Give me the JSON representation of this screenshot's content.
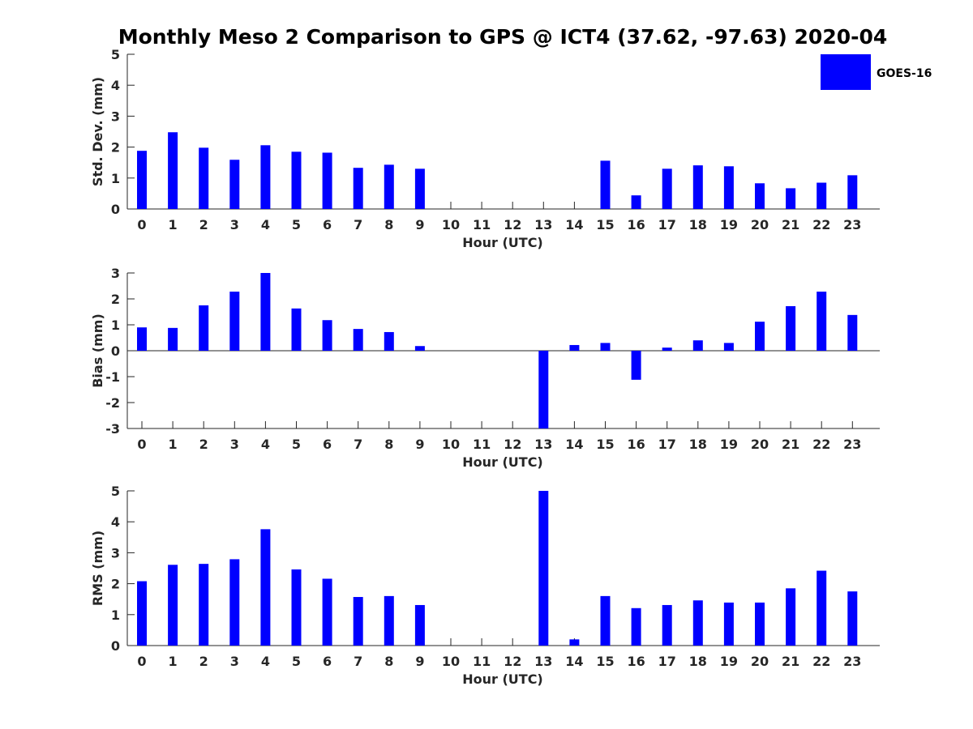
{
  "title": "Monthly Meso 2 Comparison to GPS @ ICT4 (37.62, -97.63) 2020-04",
  "legend": {
    "label": "GOES-16",
    "color": "#0000ff",
    "placement": "top-right"
  },
  "chart_data": [
    {
      "type": "bar",
      "xlabel": "Hour (UTC)",
      "ylabel": "Std. Dev. (mm)",
      "ylim": [
        0,
        5
      ],
      "yticks": [
        0,
        1,
        2,
        3,
        4,
        5
      ],
      "categories": [
        "0",
        "1",
        "2",
        "3",
        "4",
        "5",
        "6",
        "7",
        "8",
        "9",
        "10",
        "11",
        "12",
        "13",
        "14",
        "15",
        "16",
        "17",
        "18",
        "19",
        "20",
        "21",
        "22",
        "23"
      ],
      "series": [
        {
          "name": "GOES-16",
          "values": [
            1.88,
            2.48,
            1.98,
            1.59,
            2.06,
            1.85,
            1.82,
            1.33,
            1.43,
            1.3,
            null,
            null,
            null,
            null,
            null,
            1.56,
            0.44,
            1.3,
            1.41,
            1.38,
            0.83,
            0.67,
            0.85,
            1.09
          ]
        }
      ]
    },
    {
      "type": "bar",
      "xlabel": "Hour (UTC)",
      "ylabel": "Bias (mm)",
      "ylim": [
        -3,
        3
      ],
      "yticks": [
        -3,
        -2,
        -1,
        0,
        1,
        2,
        3
      ],
      "categories": [
        "0",
        "1",
        "2",
        "3",
        "4",
        "5",
        "6",
        "7",
        "8",
        "9",
        "10",
        "11",
        "12",
        "13",
        "14",
        "15",
        "16",
        "17",
        "18",
        "19",
        "20",
        "21",
        "22",
        "23"
      ],
      "series": [
        {
          "name": "GOES-16",
          "values": [
            0.9,
            0.88,
            1.75,
            2.28,
            3.0,
            1.63,
            1.18,
            0.84,
            0.72,
            0.18,
            null,
            null,
            null,
            -3.0,
            0.22,
            0.3,
            -1.12,
            0.12,
            0.4,
            0.3,
            1.12,
            1.72,
            2.28,
            1.38
          ]
        }
      ]
    },
    {
      "type": "bar",
      "xlabel": "Hour (UTC)",
      "ylabel": "RMS (mm)",
      "ylim": [
        0,
        5
      ],
      "yticks": [
        0,
        1,
        2,
        3,
        4,
        5
      ],
      "categories": [
        "0",
        "1",
        "2",
        "3",
        "4",
        "5",
        "6",
        "7",
        "8",
        "9",
        "10",
        "11",
        "12",
        "13",
        "14",
        "15",
        "16",
        "17",
        "18",
        "19",
        "20",
        "21",
        "22",
        "23"
      ],
      "series": [
        {
          "name": "GOES-16",
          "values": [
            2.08,
            2.61,
            2.64,
            2.79,
            3.76,
            2.46,
            2.16,
            1.57,
            1.6,
            1.31,
            null,
            null,
            null,
            5.0,
            0.2,
            1.6,
            1.21,
            1.31,
            1.46,
            1.39,
            1.39,
            1.85,
            2.42,
            1.75
          ]
        }
      ]
    }
  ]
}
